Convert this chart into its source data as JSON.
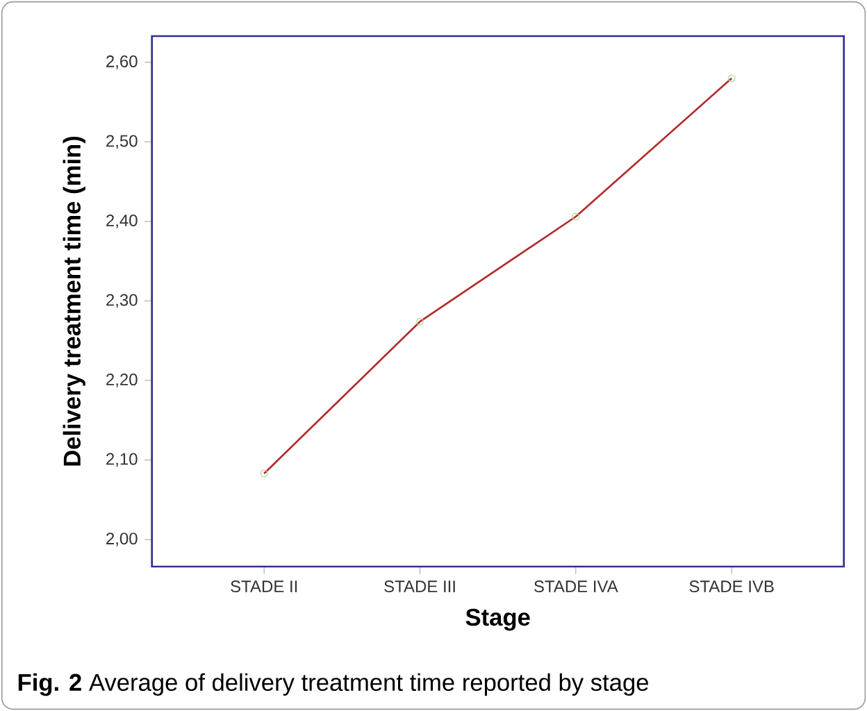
{
  "chart_data": {
    "type": "line",
    "xlabel": "Stage",
    "ylabel": "Delivery treatment time (min)",
    "categories": [
      "STADE II",
      "STADE III",
      "STADE IVA",
      "STADE IVB"
    ],
    "series": [
      {
        "color": "#b22a2a",
        "values": [
          2.083,
          2.274,
          2.406,
          2.58
        ]
      }
    ],
    "ylim": [
      1.966,
      2.633
    ],
    "yticks": [
      {
        "value": 2.0,
        "label": "2,00"
      },
      {
        "value": 2.1,
        "label": "2,10"
      },
      {
        "value": 2.2,
        "label": "2,20"
      },
      {
        "value": 2.3,
        "label": "2,30"
      },
      {
        "value": 2.4,
        "label": "2,40"
      },
      {
        "value": 2.5,
        "label": "2,50"
      },
      {
        "value": 2.6,
        "label": "2,60"
      }
    ],
    "grid": false,
    "marker": "circle",
    "line_style": "solid",
    "annotations": [
      "**Fig. 2** Average of delivery treatment time reported by stage"
    ]
  }
}
